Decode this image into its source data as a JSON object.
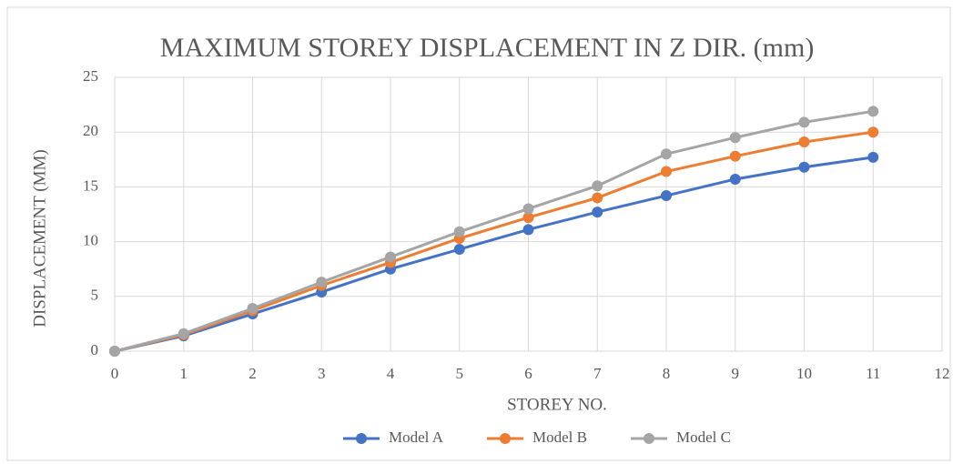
{
  "chart_data": {
    "type": "line",
    "title": "MAXIMUM STOREY DISPLACEMENT IN  Z DIR. (mm)",
    "x_label": "STOREY NO.",
    "y_label": "DISPLACEMENT  (MM)",
    "x": [
      0,
      1,
      2,
      3,
      4,
      5,
      6,
      7,
      8,
      9,
      10,
      11
    ],
    "series": [
      {
        "name": "Model A",
        "color": "#4472c4",
        "values": [
          0,
          1.4,
          3.4,
          5.4,
          7.5,
          9.3,
          11.1,
          12.7,
          14.2,
          15.7,
          16.8,
          17.7
        ]
      },
      {
        "name": "Model B",
        "color": "#ed7d31",
        "values": [
          0,
          1.5,
          3.7,
          6.0,
          8.1,
          10.3,
          12.2,
          14.0,
          16.4,
          17.8,
          19.1,
          20.0
        ]
      },
      {
        "name": "Model C",
        "color": "#a5a5a5",
        "values": [
          0,
          1.6,
          3.9,
          6.3,
          8.6,
          10.9,
          13.0,
          15.1,
          18.0,
          19.5,
          20.9,
          21.9
        ]
      }
    ],
    "xlim": [
      0,
      12
    ],
    "xticks": [
      0,
      1,
      2,
      3,
      4,
      5,
      6,
      7,
      8,
      9,
      10,
      11,
      12
    ],
    "ylim": [
      0,
      25
    ],
    "yticks": [
      0,
      5,
      10,
      15,
      20,
      25
    ],
    "grid": true,
    "legend": "bottom"
  }
}
